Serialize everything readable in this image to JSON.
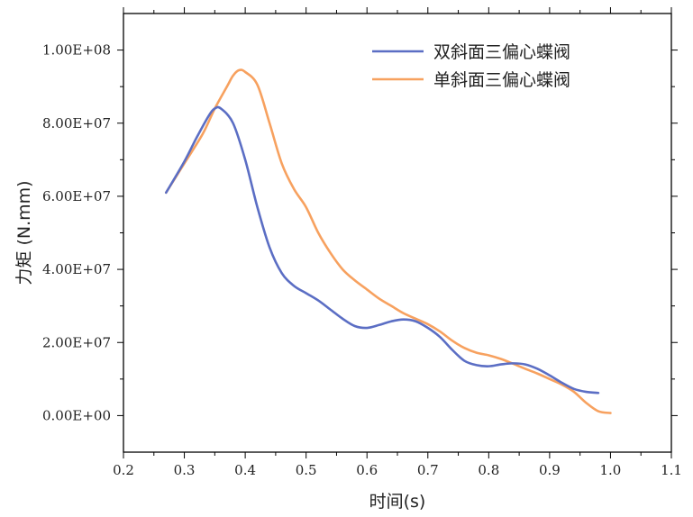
{
  "chart_data": {
    "type": "line",
    "title": "",
    "xlabel": "时间(s)",
    "ylabel": "力矩 (N.mm)",
    "xlim": [
      0.2,
      1.1
    ],
    "ylim": [
      -10000000,
      110000000
    ],
    "x_ticks": [
      0.2,
      0.3,
      0.4,
      0.5,
      0.6,
      0.7,
      0.8,
      0.9,
      1.0,
      1.1
    ],
    "x_tick_labels": [
      "0.2",
      "0.3",
      "0.4",
      "0.5",
      "0.6",
      "0.7",
      "0.8",
      "0.9",
      "1.0",
      "1.1"
    ],
    "y_ticks": [
      0,
      20000000,
      40000000,
      60000000,
      80000000,
      100000000
    ],
    "y_tick_labels": [
      "0.00E+00",
      "2.00E+07",
      "4.00E+07",
      "6.00E+07",
      "8.00E+07",
      "1.00E+08"
    ],
    "grid": false,
    "legend_position": "top-right",
    "series": [
      {
        "name": "双斜面三偏心蝶阀",
        "color": "#5b6ec4",
        "x": [
          0.27,
          0.3,
          0.32,
          0.34,
          0.35,
          0.36,
          0.38,
          0.4,
          0.42,
          0.44,
          0.46,
          0.48,
          0.5,
          0.52,
          0.54,
          0.56,
          0.58,
          0.6,
          0.62,
          0.64,
          0.66,
          0.68,
          0.7,
          0.72,
          0.74,
          0.76,
          0.78,
          0.8,
          0.82,
          0.84,
          0.86,
          0.88,
          0.9,
          0.92,
          0.94,
          0.96,
          0.98
        ],
        "y": [
          61000000,
          69500000,
          76000000,
          82000000,
          84000000,
          84000000,
          80000000,
          70000000,
          57000000,
          46000000,
          39000000,
          35500000,
          33500000,
          31500000,
          29000000,
          26500000,
          24500000,
          24000000,
          24800000,
          25800000,
          26300000,
          25800000,
          24000000,
          21500000,
          18000000,
          15000000,
          13800000,
          13500000,
          14000000,
          14300000,
          14000000,
          12800000,
          11000000,
          9000000,
          7300000,
          6500000,
          6200000
        ]
      },
      {
        "name": "单斜面三偏心蝶阀",
        "color": "#f7a15f",
        "x": [
          0.27,
          0.3,
          0.33,
          0.35,
          0.37,
          0.38,
          0.39,
          0.4,
          0.42,
          0.44,
          0.46,
          0.48,
          0.5,
          0.52,
          0.54,
          0.56,
          0.58,
          0.6,
          0.62,
          0.64,
          0.66,
          0.68,
          0.7,
          0.72,
          0.74,
          0.76,
          0.78,
          0.8,
          0.82,
          0.84,
          0.86,
          0.88,
          0.9,
          0.92,
          0.94,
          0.96,
          0.98,
          1.0
        ],
        "y": [
          61000000,
          69000000,
          77000000,
          84000000,
          90000000,
          93000000,
          94500000,
          94000000,
          90500000,
          80000000,
          69000000,
          62000000,
          57000000,
          50000000,
          44500000,
          40000000,
          37000000,
          34500000,
          32000000,
          30000000,
          28000000,
          26500000,
          25000000,
          23000000,
          20500000,
          18500000,
          17200000,
          16500000,
          15500000,
          14200000,
          12800000,
          11500000,
          10000000,
          8500000,
          6500000,
          3500000,
          1200000,
          700000
        ]
      }
    ]
  }
}
